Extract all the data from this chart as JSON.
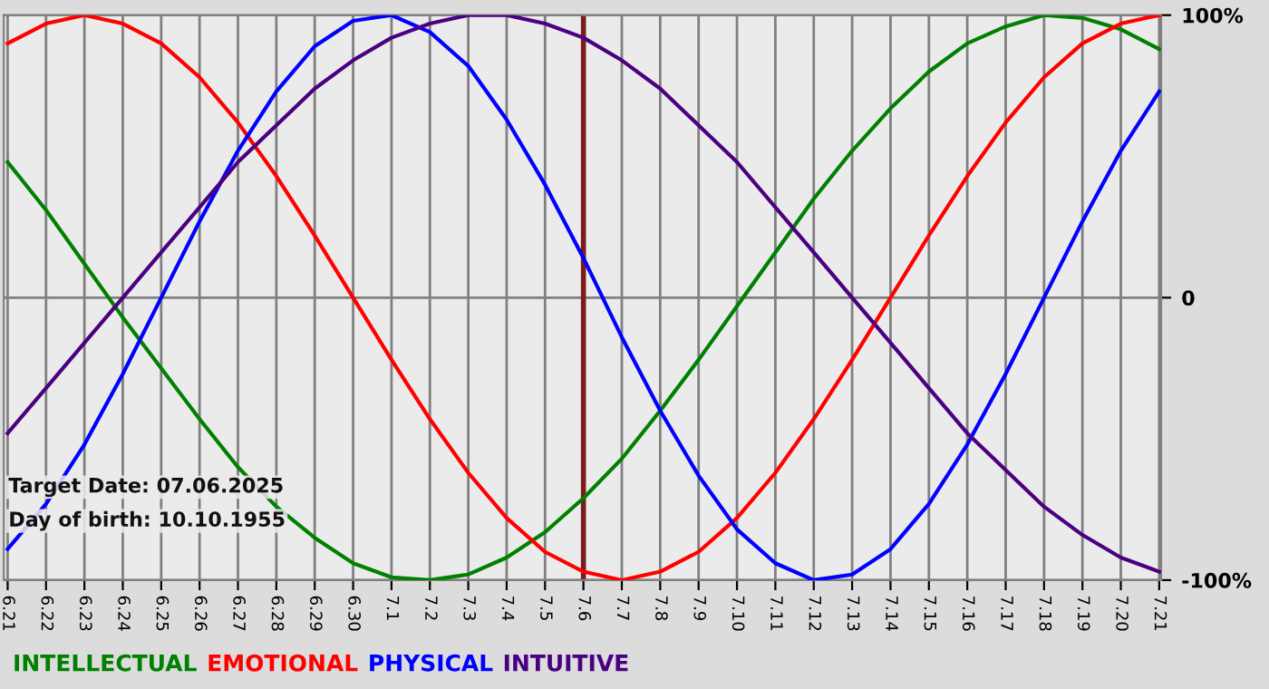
{
  "chart_data": {
    "type": "line",
    "categories": [
      "6.21",
      "6.22",
      "6.23",
      "6.24",
      "6.25",
      "6.26",
      "6.27",
      "6.28",
      "6.29",
      "6.30",
      "7.1",
      "7.2",
      "7.3",
      "7.4",
      "7.5",
      "7.6",
      "7.7",
      "7.8",
      "7.9",
      "7.10",
      "7.11",
      "7.12",
      "7.13",
      "7.14",
      "7.15",
      "7.16",
      "7.17",
      "7.18",
      "7.19",
      "7.20",
      "7.21"
    ],
    "series": [
      {
        "name": "INTELLECTUAL",
        "color": "#008000",
        "values": [
          48,
          31,
          12,
          -7,
          -25,
          -43,
          -60,
          -74,
          -85,
          -94,
          -99,
          -100,
          -98,
          -92,
          -83,
          -71,
          -57,
          -40,
          -22,
          -3,
          16,
          35,
          52,
          67,
          80,
          90,
          96,
          100,
          99,
          95,
          88
        ]
      },
      {
        "name": "EMOTIONAL",
        "color": "#ff0000",
        "values": [
          90,
          97,
          100,
          97,
          90,
          78,
          62,
          43,
          22,
          0,
          -22,
          -43,
          -62,
          -78,
          -90,
          -97,
          -100,
          -97,
          -90,
          -78,
          -62,
          -43,
          -22,
          0,
          22,
          43,
          62,
          78,
          90,
          97,
          100
        ]
      },
      {
        "name": "PHYSICAL",
        "color": "#0000ff",
        "values": [
          -89,
          -73,
          -52,
          -27,
          0,
          27,
          52,
          73,
          89,
          98,
          100,
          94,
          82,
          63,
          40,
          14,
          -14,
          -40,
          -63,
          -82,
          -94,
          -100,
          -98,
          -89,
          -73,
          -52,
          -27,
          0,
          27,
          52,
          73
        ]
      },
      {
        "name": "INTUITIVE",
        "color": "#4b0082",
        "values": [
          -48,
          -32,
          -16,
          0,
          16,
          32,
          48,
          61,
          74,
          84,
          92,
          97,
          100,
          100,
          97,
          92,
          84,
          74,
          61,
          48,
          32,
          16,
          0,
          -16,
          -32,
          -48,
          -61,
          -74,
          -84,
          -92,
          -97
        ]
      }
    ],
    "ylim": [
      -100,
      100
    ],
    "yticks": [
      {
        "value": 100,
        "label": "100%"
      },
      {
        "value": 0,
        "label": "0"
      },
      {
        "value": -100,
        "label": "-100%"
      }
    ],
    "grid": true,
    "legend": "bottom",
    "marker": "none",
    "line_style": "solid",
    "ref_lines": [
      {
        "axis": "x",
        "value": "7.6",
        "color": "#7b1c1c"
      }
    ],
    "annotations": [
      "Target Date: 07.06.2025",
      "Day of birth: 10.10.1955"
    ]
  }
}
